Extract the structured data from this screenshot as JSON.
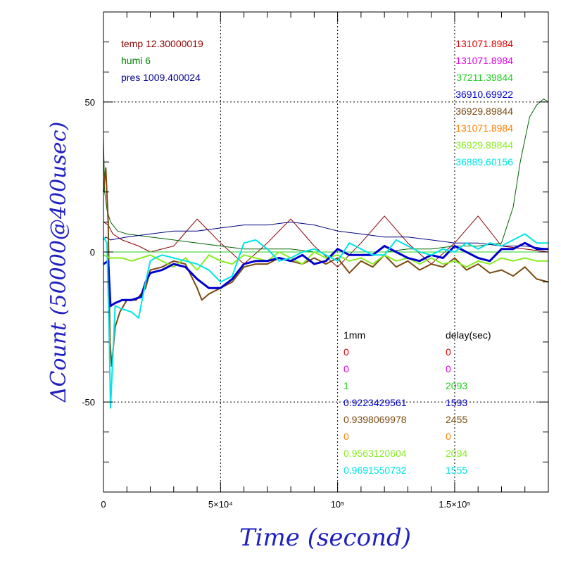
{
  "chart_data": {
    "type": "line",
    "xlabel": "Time (second)",
    "ylabel": "ΔCount (50000@400usec)",
    "xlim": [
      0,
      190000
    ],
    "ylim": [
      -80,
      80
    ],
    "grid": true,
    "x_ticks": [
      {
        "value": 0,
        "label": "0"
      },
      {
        "value": 50000,
        "label": "5×10⁴"
      },
      {
        "value": 100000,
        "label": "10⁵"
      },
      {
        "value": 150000,
        "label": "1.5×10⁵"
      }
    ],
    "y_ticks": [
      {
        "value": 50,
        "label": "50"
      },
      {
        "value": 0,
        "label": "0"
      },
      {
        "value": -50,
        "label": "-50"
      }
    ],
    "env_legend": [
      {
        "text": "temp 12.30000019",
        "color": "#8b0000"
      },
      {
        "text": "humi 6",
        "color": "#008000"
      },
      {
        "text": "pres 1009.400024",
        "color": "#00008b"
      }
    ],
    "series_values": [
      {
        "text": "131071.8984",
        "color": "#e00000"
      },
      {
        "text": "131071.8984",
        "color": "#e000e0"
      },
      {
        "text": "37211.39844",
        "color": "#22cc22"
      },
      {
        "text": "36910.69922",
        "color": "#0000cc"
      },
      {
        "text": "36929.89844",
        "color": "#7a4a10"
      },
      {
        "text": "131071.8984",
        "color": "#ff8000"
      },
      {
        "text": "36929.89844",
        "color": "#88ee22"
      },
      {
        "text": "36889.60156",
        "color": "#00e5e5"
      }
    ],
    "table": {
      "header_left": "1mm",
      "header_right": "delay(sec)",
      "rows": [
        {
          "left": "0",
          "right": "0",
          "color": "#e00000"
        },
        {
          "left": "0",
          "right": "0",
          "color": "#e000e0"
        },
        {
          "left": "1",
          "right": "2093",
          "color": "#22cc22"
        },
        {
          "left": "0.9223429561",
          "right": "1593",
          "color": "#0000cc"
        },
        {
          "left": "0.9398069978",
          "right": "2455",
          "color": "#7a4a10"
        },
        {
          "left": "0",
          "right": "0",
          "color": "#ff8000"
        },
        {
          "left": "0.9563120604",
          "right": "2094",
          "color": "#88ee22"
        },
        {
          "left": "0.9691550732",
          "right": "1555",
          "color": "#00e5e5"
        }
      ]
    },
    "series": [
      {
        "color": "#8b0000",
        "width": 1,
        "x": [
          0,
          2000,
          4000,
          8000,
          15000,
          20000,
          30000,
          40000,
          50000,
          60000,
          70000,
          80000,
          90000,
          100000,
          110000,
          120000,
          130000,
          140000,
          150000,
          160000,
          170000,
          180000,
          190000
        ],
        "values": [
          10,
          9,
          6,
          4,
          2,
          0,
          2,
          11,
          3,
          -4,
          3,
          11,
          2,
          -5,
          3,
          12,
          3,
          -4,
          3,
          12,
          2,
          1,
          0
        ]
      },
      {
        "color": "#006400",
        "width": 1,
        "x": [
          0,
          500,
          1500,
          3000,
          6000,
          10000,
          20000,
          30000,
          40000,
          50000,
          60000,
          70000,
          80000,
          90000,
          100000,
          110000,
          120000,
          130000,
          140000,
          150000,
          160000,
          170000,
          175000,
          178000,
          182000,
          185000,
          188000,
          190000
        ],
        "values": [
          38,
          20,
          14,
          10,
          7,
          6,
          5,
          4,
          3,
          2,
          1,
          1,
          1,
          0,
          0,
          0,
          0,
          1,
          1,
          2,
          2,
          3,
          15,
          30,
          45,
          49,
          51,
          50
        ]
      },
      {
        "color": "#000080",
        "width": 1,
        "x": [
          0,
          1000,
          3000,
          10000,
          20000,
          30000,
          40000,
          50000,
          60000,
          70000,
          80000,
          90000,
          100000,
          110000,
          120000,
          130000,
          140000,
          150000,
          160000,
          170000,
          180000,
          190000
        ],
        "values": [
          4,
          5,
          4,
          5,
          6,
          7,
          7,
          8,
          9,
          9,
          10,
          9,
          7,
          6,
          5,
          5,
          4,
          3,
          3,
          2,
          2,
          1
        ]
      },
      {
        "color": "#22cc22",
        "width": 1,
        "x": [
          0,
          190000
        ],
        "values": [
          0,
          0
        ]
      },
      {
        "color": "#7a4a10",
        "width": 2,
        "x": [
          0,
          1000,
          2000,
          2800,
          3500,
          5000,
          7000,
          10000,
          14000,
          18000,
          20000,
          25000,
          30000,
          35000,
          40000,
          42000,
          45000,
          50000,
          55000,
          60000,
          65000,
          70000,
          75000,
          80000,
          85000,
          90000,
          95000,
          100000,
          105000,
          110000,
          115000,
          120000,
          125000,
          130000,
          135000,
          140000,
          145000,
          150000,
          155000,
          160000,
          165000,
          170000,
          175000,
          180000,
          185000,
          190000
        ],
        "values": [
          20,
          28,
          10,
          -30,
          -38,
          -25,
          -20,
          -16,
          -16,
          -12,
          -6,
          -5,
          -3,
          -4,
          -12,
          -16,
          -14,
          -12,
          -10,
          -5,
          -4,
          -4,
          -2,
          -3,
          -4,
          -2,
          -4,
          -2,
          -7,
          -3,
          -5,
          -1,
          -5,
          -3,
          -6,
          -4,
          -5,
          -2,
          -6,
          -4,
          -7,
          -6,
          -8,
          -5,
          -9,
          -10
        ]
      },
      {
        "color": "#88ee22",
        "width": 2,
        "x": [
          0,
          3000,
          8000,
          12000,
          16000,
          20000,
          25000,
          30000,
          35000,
          40000,
          45000,
          50000,
          55000,
          60000,
          65000,
          70000,
          75000,
          80000,
          85000,
          90000,
          95000,
          100000,
          105000,
          110000,
          115000,
          120000,
          125000,
          130000,
          135000,
          140000,
          145000,
          150000,
          155000,
          160000,
          165000,
          170000,
          175000,
          180000,
          185000,
          190000
        ],
        "values": [
          -1,
          -2,
          -2,
          -3,
          -2,
          -1,
          -3,
          -5,
          -2,
          -6,
          -1,
          -3,
          -4,
          -1,
          -2,
          -3,
          0,
          -2,
          -4,
          0,
          -2,
          -1,
          -3,
          -2,
          -4,
          -1,
          -3,
          -2,
          -4,
          -2,
          -4,
          -3,
          -5,
          -3,
          -4,
          -2,
          -3,
          -2,
          -3,
          -3
        ]
      },
      {
        "color": "#0000cc",
        "width": 3,
        "x": [
          0,
          2000,
          3000,
          5000,
          8000,
          12000,
          16000,
          18000,
          20000,
          25000,
          30000,
          35000,
          40000,
          45000,
          50000,
          55000,
          60000,
          65000,
          70000,
          75000,
          80000,
          85000,
          90000,
          95000,
          100000,
          105000,
          110000,
          115000,
          120000,
          125000,
          130000,
          135000,
          140000,
          145000,
          150000,
          155000,
          160000,
          165000,
          170000,
          175000,
          180000,
          185000,
          190000
        ],
        "values": [
          -4,
          -3,
          -18,
          -17,
          -16,
          -16,
          -15,
          -10,
          -7,
          -6,
          -4,
          -5,
          -9,
          -12,
          -12,
          -9,
          -4,
          -3,
          -3,
          -2,
          -3,
          -1,
          -4,
          -3,
          1,
          -1,
          -1,
          -1,
          2,
          0,
          -2,
          -3,
          -1,
          -2,
          2,
          0,
          -2,
          -3,
          1,
          1,
          3,
          1,
          1
        ]
      },
      {
        "color": "#00e5e5",
        "width": 2,
        "x": [
          0,
          1500,
          2500,
          3000,
          4000,
          5000,
          8000,
          12000,
          15000,
          18000,
          20000,
          22000,
          25000,
          30000,
          35000,
          40000,
          45000,
          50000,
          55000,
          60000,
          65000,
          70000,
          75000,
          80000,
          85000,
          90000,
          95000,
          100000,
          105000,
          110000,
          115000,
          120000,
          125000,
          130000,
          135000,
          140000,
          145000,
          150000,
          155000,
          160000,
          165000,
          170000,
          175000,
          180000,
          185000,
          190000
        ],
        "values": [
          5,
          3,
          -30,
          -52,
          -35,
          -18,
          -19,
          -20,
          -22,
          -10,
          -3,
          -2,
          -1,
          -2,
          -3,
          -4,
          -6,
          -10,
          -8,
          3,
          4,
          1,
          -3,
          -2,
          0,
          1,
          -1,
          -3,
          3,
          1,
          -1,
          -1,
          4,
          2,
          0,
          -1,
          1,
          0,
          3,
          1,
          3,
          2,
          4,
          6,
          3,
          3
        ]
      }
    ]
  }
}
